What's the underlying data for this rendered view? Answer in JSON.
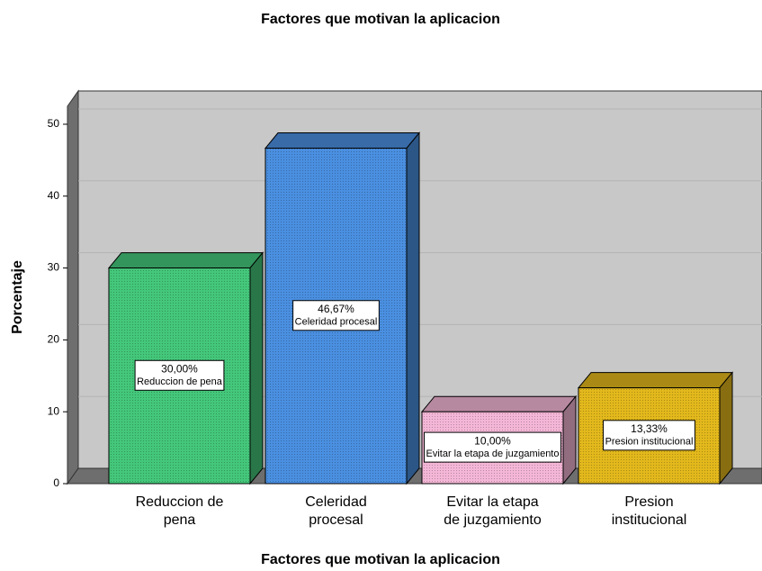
{
  "chart_data": {
    "type": "bar3d",
    "title": "Factores que motivan la aplicacion",
    "x_label": "Factores que motivan la aplicacion",
    "y_label": "Porcentaje",
    "categories": [
      "Reduccion de pena",
      "Celeridad procesal",
      "Evitar la etapa de juzgamiento",
      "Presion institucional"
    ],
    "values": [
      30,
      46.67,
      10,
      13.33
    ],
    "value_labels": [
      "30,00%",
      "46,67%",
      "10,00%",
      "13,33%"
    ],
    "colors": [
      "#44c77a",
      "#4a8fe0",
      "#f4b6d6",
      "#e2b81c"
    ],
    "ylim": [
      0,
      52.5
    ],
    "yticks": [
      0,
      10,
      20,
      30,
      40,
      50
    ],
    "grid": true
  }
}
